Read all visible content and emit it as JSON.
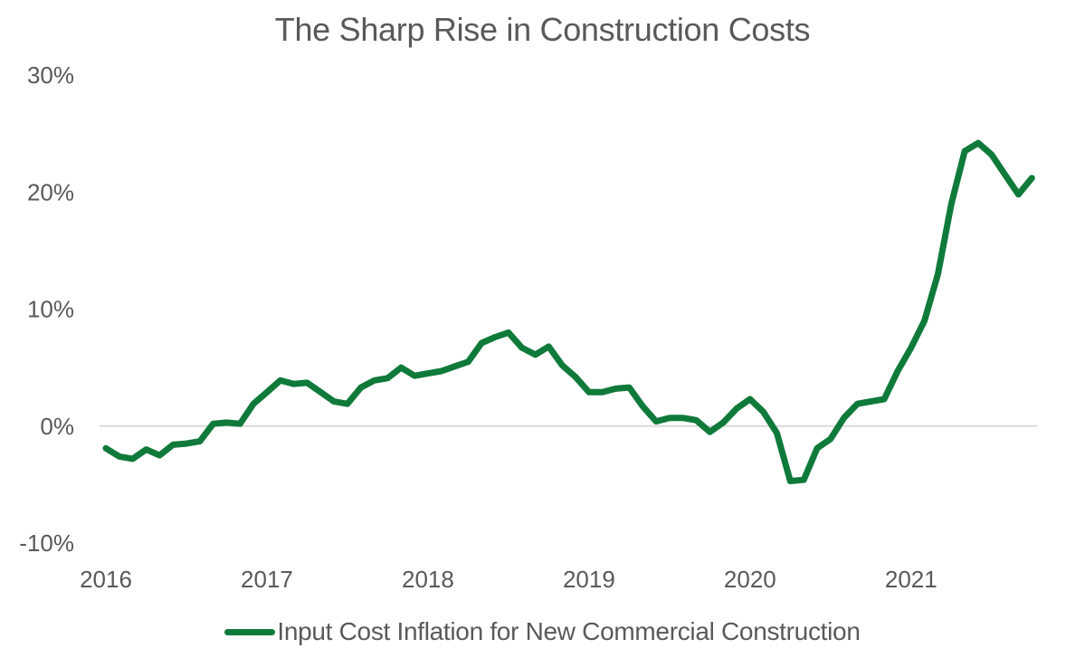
{
  "chart_data": {
    "type": "line",
    "title": "The Sharp Rise in Construction Costs",
    "xlabel": "",
    "ylabel": "",
    "ylim": [
      -10,
      30
    ],
    "y_ticks": [
      30,
      20,
      10,
      0,
      -10
    ],
    "y_tick_labels": [
      "30%",
      "20%",
      "10%",
      "0%",
      "-10%"
    ],
    "x_tick_labels": [
      "2016",
      "2017",
      "2018",
      "2019",
      "2020",
      "2021"
    ],
    "x_start": "2016-01",
    "x_frequency": "monthly",
    "grid": "zero-line only",
    "legend_position": "bottom",
    "series": [
      {
        "name": "Input Cost Inflation for New Commercial Construction",
        "color": "#0f7a3a",
        "values": [
          -1.9,
          -2.6,
          -2.8,
          -2.0,
          -2.5,
          -1.6,
          -1.5,
          -1.3,
          0.2,
          0.3,
          0.2,
          1.9,
          2.9,
          3.9,
          3.6,
          3.7,
          2.9,
          2.1,
          1.9,
          3.3,
          3.9,
          4.1,
          5.0,
          4.3,
          4.5,
          4.7,
          5.1,
          5.5,
          7.1,
          7.6,
          8.0,
          6.7,
          6.1,
          6.8,
          5.2,
          4.2,
          2.9,
          2.9,
          3.2,
          3.3,
          1.7,
          0.4,
          0.7,
          0.7,
          0.5,
          -0.5,
          0.3,
          1.5,
          2.3,
          1.2,
          -0.6,
          -4.7,
          -4.6,
          -1.9,
          -1.1,
          0.7,
          1.9,
          2.1,
          2.3,
          4.7,
          6.7,
          9.0,
          13.0,
          19.0,
          23.5,
          24.2,
          23.2,
          21.5,
          19.8,
          21.2
        ]
      }
    ]
  }
}
